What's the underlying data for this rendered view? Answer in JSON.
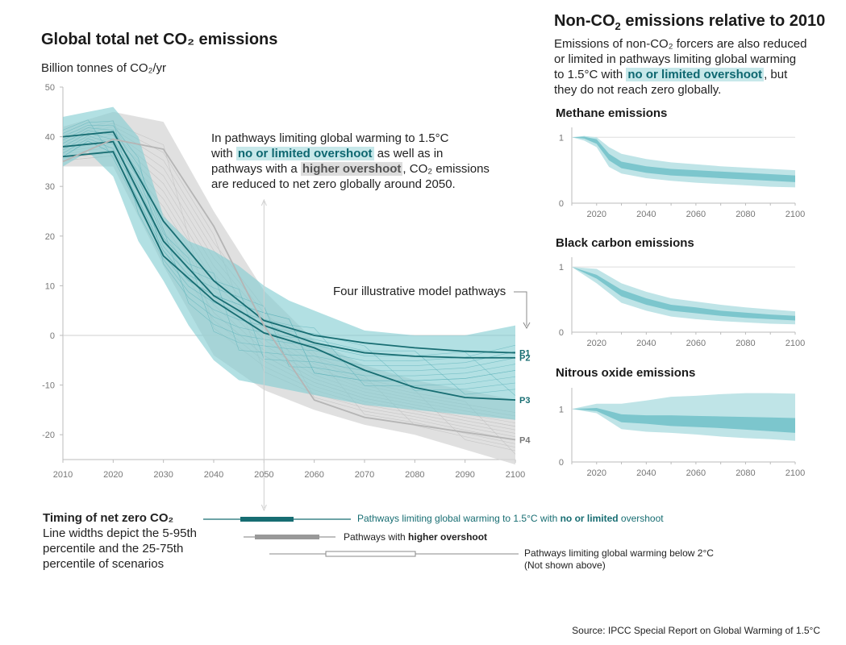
{
  "main": {
    "title": "Global total net CO₂ emissions",
    "unit": "Billion tonnes of CO₂/yr",
    "annotation": {
      "p1": "In pathways limiting global warming to 1.5°C",
      "p2a": "with ",
      "p2hl": "no or limited overshoot",
      "p2b": " as well as in",
      "p3a": "pathways with a ",
      "p3hl": "higher overshoot",
      "p3b": ", CO₂ emissions",
      "p4": "are reduced to net zero globally around 2050."
    },
    "pathways_label": "Four illustrative model pathways"
  },
  "right": {
    "title_a": "Non-CO",
    "title_sub": "2",
    "title_b": " emissions relative to 2010",
    "desc": {
      "l1": "Emissions of non-CO₂ forcers are also reduced",
      "l2": "or limited in pathways limiting global warming",
      "l3a": "to 1.5°C with ",
      "l3hl": "no or limited overshoot",
      "l3b": ", but",
      "l4": "they do not reach zero globally."
    }
  },
  "timing": {
    "title": "Timing of net zero CO₂",
    "desc1": "Line widths depict the 5-95th",
    "desc2": "percentile and the 25-75th",
    "desc3": "percentile of scenarios",
    "row1_a": "Pathways limiting global warming to 1.5°C with ",
    "row1_b": "no or limited",
    "row1_c": " overshoot",
    "row2_a": "Pathways with ",
    "row2_b": "higher overshoot",
    "row3_a": "Pathways limiting global warming below 2°C",
    "row3_b": "(Not shown above)"
  },
  "source": "Source: IPCC Special Report on Global Warming of 1.5°C",
  "colors": {
    "teal_dark": "#176d72",
    "teal_mid": "#7fcbd1",
    "teal_light": "#bfe4e7",
    "grey_band": "#d6d6d6",
    "grey_line": "#b5b5b5",
    "axis_text": "#777777"
  },
  "chart_data": [
    {
      "type": "area",
      "title": "Global total net CO₂ emissions",
      "ylabel": "Billion tonnes of CO₂/yr",
      "xlabel": "",
      "xlim": [
        2010,
        2100
      ],
      "ylim": [
        -25,
        50
      ],
      "x_ticks": [
        2010,
        2020,
        2030,
        2040,
        2050,
        2060,
        2070,
        2080,
        2090,
        2100
      ],
      "y_ticks": [
        50,
        40,
        30,
        20,
        10,
        0,
        -10,
        -20
      ],
      "bands": [
        {
          "group": "higher overshoot",
          "x": [
            2010,
            2020,
            2030,
            2040,
            2050,
            2060,
            2070,
            2080,
            2090,
            2100
          ],
          "upper": [
            42,
            45,
            43,
            25,
            9,
            -1,
            -6,
            -9,
            -11,
            -13
          ],
          "lower": [
            34,
            34,
            14,
            -4,
            -11,
            -15,
            -18,
            -20,
            -23,
            -26
          ]
        },
        {
          "group": "no or limited overshoot",
          "x": [
            2010,
            2015,
            2020,
            2025,
            2030,
            2035,
            2040,
            2045,
            2050,
            2055,
            2060,
            2070,
            2080,
            2090,
            2100
          ],
          "upper": [
            44,
            45,
            46,
            40,
            24,
            19,
            17,
            14,
            10,
            7,
            5,
            1,
            0,
            0,
            2
          ],
          "lower": [
            34,
            37,
            32,
            19,
            11,
            2,
            -5,
            -9,
            -10,
            -11,
            -12,
            -14,
            -15,
            -16,
            -17
          ]
        }
      ],
      "series": [
        {
          "name": "P1",
          "x": [
            2010,
            2020,
            2030,
            2040,
            2050,
            2060,
            2070,
            2080,
            2090,
            2100
          ],
          "values": [
            40,
            41,
            23,
            11,
            3,
            0,
            -1.5,
            -2.5,
            -3.2,
            -3.5
          ]
        },
        {
          "name": "P2",
          "x": [
            2010,
            2020,
            2030,
            2040,
            2050,
            2060,
            2070,
            2080,
            2090,
            2100
          ],
          "values": [
            38,
            39,
            19,
            8,
            2,
            -1.5,
            -3.5,
            -4.2,
            -4.5,
            -4.5
          ]
        },
        {
          "name": "P3",
          "x": [
            2010,
            2020,
            2030,
            2040,
            2050,
            2060,
            2070,
            2080,
            2090,
            2100
          ],
          "values": [
            36,
            37,
            16,
            7,
            0.5,
            -2.5,
            -7,
            -10.5,
            -12.5,
            -13
          ]
        },
        {
          "name": "P4",
          "x": [
            2010,
            2020,
            2030,
            2040,
            2050,
            2060,
            2070,
            2080,
            2090,
            2100
          ],
          "values": [
            35,
            39.5,
            37.5,
            22,
            2,
            -13,
            -16.5,
            -18,
            -19.5,
            -21
          ]
        }
      ]
    },
    {
      "type": "area",
      "title": "Methane emissions",
      "xlim": [
        2010,
        2100
      ],
      "ylim": [
        0,
        1.15
      ],
      "x_ticks": [
        2020,
        2040,
        2060,
        2080,
        2100
      ],
      "y_ticks": [
        0,
        1
      ],
      "x": [
        2010,
        2015,
        2020,
        2025,
        2030,
        2040,
        2050,
        2060,
        2070,
        2080,
        2090,
        2100
      ],
      "band_5_95_upper": [
        1.0,
        1.02,
        1.0,
        0.85,
        0.75,
        0.67,
        0.62,
        0.59,
        0.56,
        0.54,
        0.52,
        0.5
      ],
      "band_5_95_lower": [
        1.0,
        0.95,
        0.85,
        0.55,
        0.45,
        0.38,
        0.34,
        0.31,
        0.29,
        0.27,
        0.25,
        0.24
      ],
      "band_25_75_upper": [
        1.0,
        1.01,
        0.97,
        0.75,
        0.63,
        0.56,
        0.52,
        0.5,
        0.48,
        0.46,
        0.44,
        0.42
      ],
      "band_25_75_lower": [
        1.0,
        0.98,
        0.9,
        0.65,
        0.53,
        0.46,
        0.42,
        0.4,
        0.38,
        0.36,
        0.34,
        0.32
      ]
    },
    {
      "type": "area",
      "title": "Black carbon emissions",
      "xlim": [
        2010,
        2100
      ],
      "ylim": [
        0,
        1.15
      ],
      "x_ticks": [
        2020,
        2040,
        2060,
        2080,
        2100
      ],
      "y_ticks": [
        0,
        1
      ],
      "x": [
        2010,
        2020,
        2030,
        2040,
        2050,
        2060,
        2070,
        2080,
        2090,
        2100
      ],
      "band_5_95_upper": [
        1.0,
        0.97,
        0.75,
        0.62,
        0.52,
        0.47,
        0.42,
        0.38,
        0.35,
        0.32
      ],
      "band_5_95_lower": [
        1.0,
        0.75,
        0.45,
        0.33,
        0.24,
        0.2,
        0.17,
        0.15,
        0.13,
        0.12
      ],
      "band_25_75_upper": [
        1.0,
        0.88,
        0.65,
        0.52,
        0.42,
        0.38,
        0.33,
        0.3,
        0.27,
        0.25
      ],
      "band_25_75_lower": [
        1.0,
        0.82,
        0.55,
        0.42,
        0.33,
        0.29,
        0.25,
        0.22,
        0.2,
        0.18
      ]
    },
    {
      "type": "area",
      "title": "Nitrous oxide emissions",
      "xlim": [
        2010,
        2100
      ],
      "ylim": [
        0,
        1.4
      ],
      "x_ticks": [
        2020,
        2040,
        2060,
        2080,
        2100
      ],
      "y_ticks": [
        0,
        1
      ],
      "x": [
        2010,
        2020,
        2030,
        2040,
        2050,
        2060,
        2070,
        2080,
        2090,
        2100
      ],
      "band_5_95_upper": [
        1.0,
        1.1,
        1.1,
        1.16,
        1.23,
        1.25,
        1.28,
        1.3,
        1.3,
        1.29
      ],
      "band_5_95_lower": [
        1.0,
        0.92,
        0.62,
        0.57,
        0.55,
        0.52,
        0.48,
        0.45,
        0.43,
        0.4
      ],
      "band_25_75_upper": [
        1.0,
        1.02,
        0.9,
        0.88,
        0.88,
        0.87,
        0.86,
        0.85,
        0.84,
        0.83
      ],
      "band_25_75_lower": [
        1.0,
        0.96,
        0.75,
        0.72,
        0.68,
        0.66,
        0.64,
        0.61,
        0.58,
        0.55
      ]
    }
  ]
}
